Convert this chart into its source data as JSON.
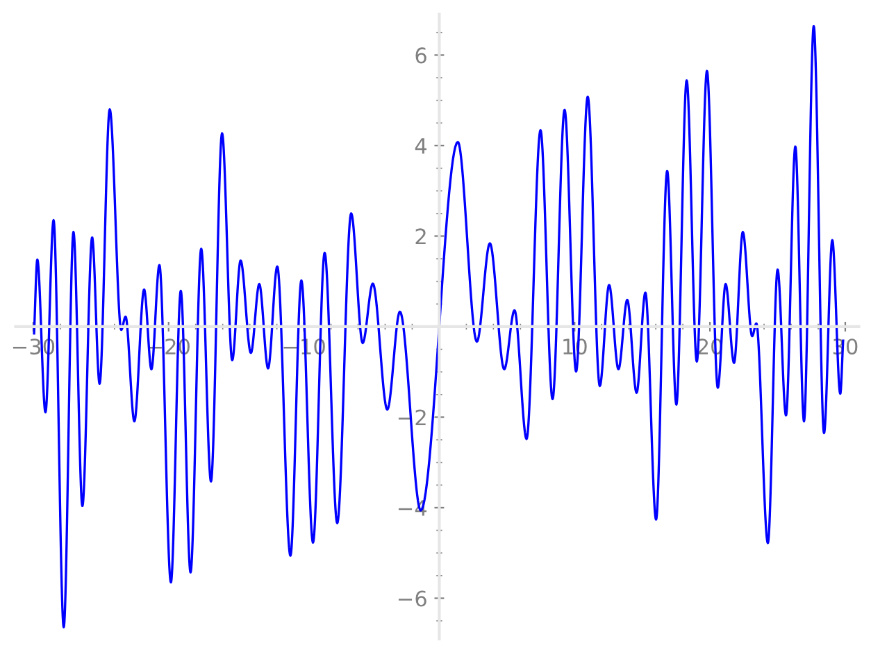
{
  "chart_data": {
    "type": "line",
    "x": [
      -29.94,
      -29.7,
      -29.1,
      -28.5,
      -27.75,
      -27.03,
      -26.37,
      -25.65,
      -25.1,
      -24.35,
      -23.5,
      -23.18,
      -22.53,
      -21.81,
      -21.27,
      -20.68,
      -19.83,
      -19.1,
      -18.38,
      -17.59,
      -16.87,
      -16.05,
      -15.3,
      -14.68,
      -13.92,
      -13.3,
      -12.65,
      -11.97,
      -11.0,
      -10.19,
      -9.33,
      -8.47,
      -7.54,
      -6.51,
      -5.66,
      -4.91,
      -3.84,
      -2.91,
      -1.37,
      1.37,
      2.78,
      3.74,
      4.8,
      5.56,
      6.45,
      7.48,
      8.37,
      9.26,
      10.11,
      10.97,
      11.86,
      12.55,
      13.24,
      13.89,
      14.58,
      15.23,
      16.02,
      16.84,
      17.52,
      18.28,
      19.03,
      19.78,
      20.58,
      21.16,
      21.78,
      22.43,
      23.12,
      23.43,
      24.28,
      25.0,
      25.62,
      26.31,
      26.95,
      27.67,
      28.43,
      29.04,
      29.63,
      29.84
    ],
    "series": [
      {
        "color": "#0000ff",
        "values": [
          -0.15,
          1.48,
          -1.89,
          2.35,
          -6.64,
          2.09,
          -3.96,
          1.97,
          -1.26,
          4.8,
          -0.07,
          0.22,
          -2.09,
          0.82,
          -0.94,
          1.36,
          -5.65,
          0.79,
          -5.43,
          1.72,
          -3.42,
          4.27,
          -0.74,
          1.46,
          -0.58,
          0.94,
          -0.92,
          1.33,
          -5.06,
          1.02,
          -4.77,
          1.63,
          -4.34,
          2.5,
          -0.36,
          0.95,
          -1.83,
          0.33,
          -4.06,
          4.08,
          -0.33,
          1.84,
          -0.94,
          0.36,
          -2.48,
          4.34,
          -1.6,
          4.79,
          -0.99,
          5.08,
          -1.31,
          0.92,
          -0.94,
          0.59,
          -1.46,
          0.75,
          -4.26,
          3.44,
          -1.72,
          5.44,
          -0.77,
          5.65,
          -1.35,
          0.94,
          -0.8,
          2.09,
          -0.21,
          0.07,
          -4.78,
          1.26,
          -1.96,
          3.98,
          -2.09,
          6.64,
          -2.35,
          1.91,
          -1.48,
          -0.31
        ]
      }
    ],
    "xlim": [
      -31.3,
      31.0
    ],
    "ylim": [
      -6.9,
      6.9
    ],
    "xticks": [
      {
        "value": -30,
        "label": "−30"
      },
      {
        "value": -20,
        "label": "−20"
      },
      {
        "value": -10,
        "label": "−10"
      },
      10,
      20,
      30
    ],
    "yticks": [
      {
        "value": -6,
        "label": "−6"
      },
      {
        "value": -4,
        "label": "−4"
      },
      {
        "value": -2,
        "label": "−2"
      },
      2,
      4,
      6
    ],
    "grid": false,
    "marker": "none",
    "line_style": "solid"
  }
}
